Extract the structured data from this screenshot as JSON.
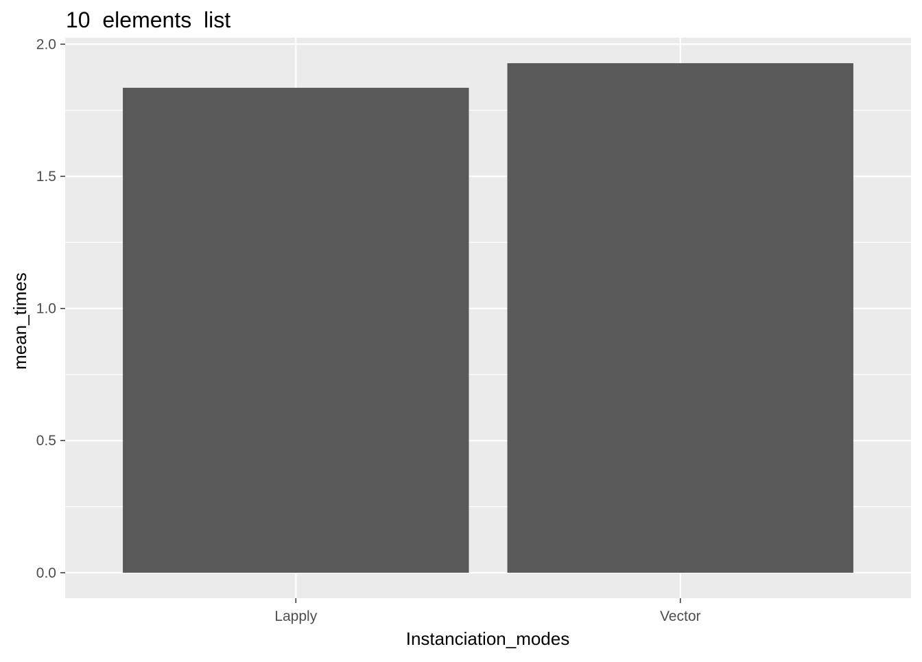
{
  "chart_data": {
    "type": "bar",
    "title": "10  elements  list",
    "xlabel": "Instanciation_modes",
    "ylabel": "mean_times",
    "categories": [
      "Lapply",
      "Vector"
    ],
    "values": [
      1.835,
      1.928
    ],
    "ylim": [
      -0.0964,
      2.0244
    ],
    "yticks": [
      0.0,
      0.5,
      1.0,
      1.5,
      2.0
    ],
    "ytick_labels": [
      "0.0",
      "0.5",
      "1.0",
      "1.5",
      "2.0"
    ],
    "grid": true,
    "legend": "none",
    "bar_color": "#595959",
    "panel_background": "#ebebeb",
    "grid_color": "#ffffff",
    "axis_text_color": "#4d4d4d"
  }
}
